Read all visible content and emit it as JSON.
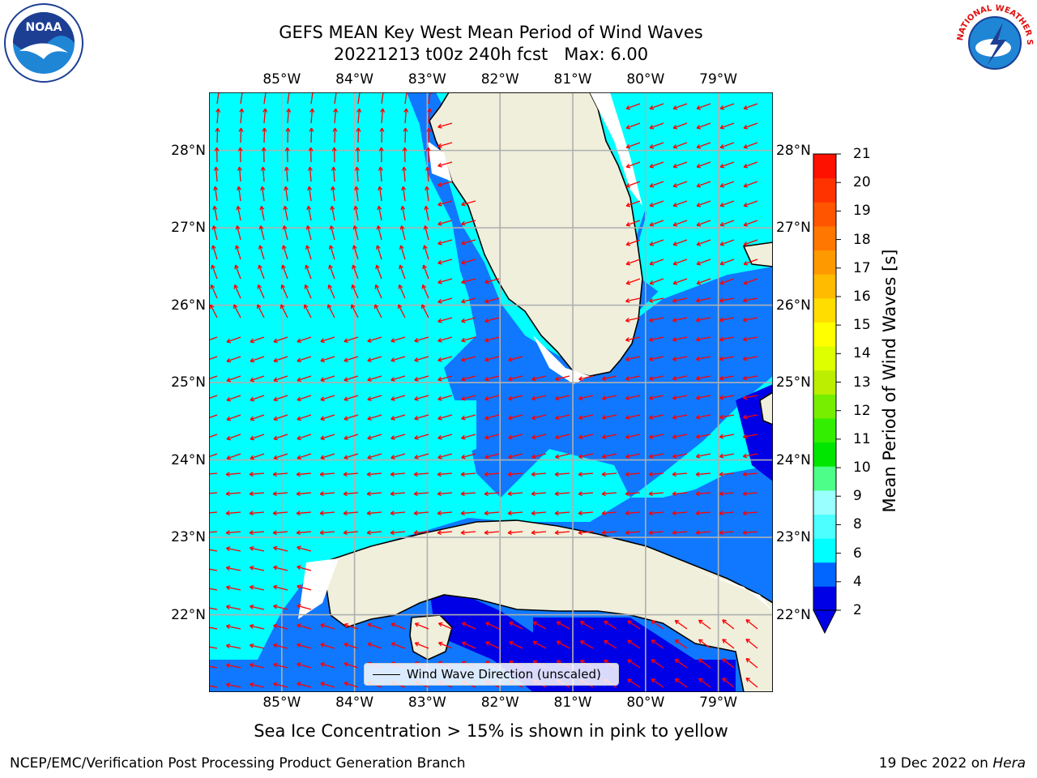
{
  "header": {
    "title_line1": "GEFS MEAN Key West Mean Period of Wind Waves",
    "title_line2": "20221213 t00z 240h fcst   Max: 6.00"
  },
  "logos": {
    "left": {
      "text": "NOAA",
      "icon": "noaa-logo"
    },
    "right": {
      "text": "NATIONAL WEATHER SERVICE",
      "icon": "nws-logo"
    }
  },
  "map": {
    "lon_ticks": [
      "85°W",
      "84°W",
      "83°W",
      "82°W",
      "81°W",
      "80°W",
      "79°W"
    ],
    "lat_ticks": [
      "28°N",
      "27°N",
      "26°N",
      "25°N",
      "24°N",
      "23°N",
      "22°N"
    ],
    "lon_values": [
      -85,
      -84,
      -83,
      -82,
      -81,
      -80,
      -79
    ],
    "lat_values": [
      28,
      27,
      26,
      25,
      24,
      23,
      22
    ],
    "extent": {
      "lon_min": -86.0,
      "lon_max": -78.25,
      "lat_min": 21.0,
      "lat_max": 28.75
    },
    "colors": {
      "land": "#efefdc",
      "coast": "#000000",
      "grid": "#b0b0b0",
      "arrow": "#ff0000"
    }
  },
  "colorbar": {
    "title": "Mean Period of Wind Waves [s]",
    "labels": [
      "21",
      "20",
      "19",
      "18",
      "17",
      "16",
      "15",
      "14",
      "13",
      "12",
      "11",
      "10",
      "9",
      "8",
      "6",
      "4",
      "2"
    ],
    "label_values": [
      21,
      20,
      19,
      18,
      17,
      16,
      15,
      14,
      13,
      12,
      11,
      10,
      9,
      8,
      6,
      4,
      2
    ],
    "colors": [
      "#0000e6",
      "#0066ff",
      "#00ffff",
      "#4dffff",
      "#99ffff",
      "#4dff88",
      "#00e600",
      "#33ee00",
      "#77ee00",
      "#bbee00",
      "#ddff00",
      "#ffff00",
      "#ffdd00",
      "#ffbb00",
      "#ff9900",
      "#ff7700",
      "#ff5500",
      "#ff3300",
      "#ff1100"
    ],
    "under_color": "#0000e6"
  },
  "legend": {
    "label": "Wind Wave Direction (unscaled)"
  },
  "notes": {
    "sea_ice": "Sea Ice Concentration > 15% is shown in pink to yellow"
  },
  "footer": {
    "left": "NCEP/EMC/Verification Post Processing Product Generation Branch",
    "right_date": "19 Dec 2022 on ",
    "right_host": "Hera"
  }
}
